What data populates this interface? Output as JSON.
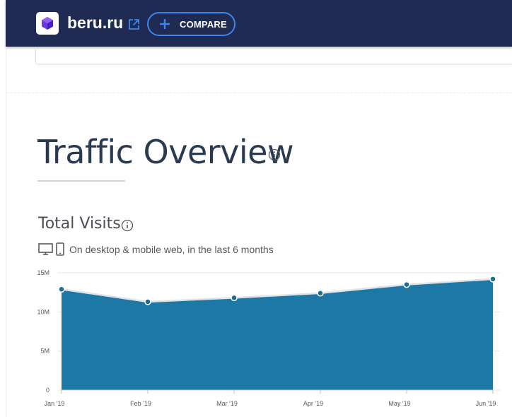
{
  "header": {
    "site_name": "beru.ru",
    "compare_label": "COMPARE"
  },
  "section": {
    "title": "Traffic Overview"
  },
  "total_visits": {
    "title": "Total Visits",
    "scope": "On desktop & mobile web, in the last 6 months"
  },
  "colors": {
    "topbar": "#202b54",
    "accent": "#3b86ee",
    "area_fill": "#1e78a6",
    "logo": "#6c39e0"
  },
  "chart_data": {
    "type": "area",
    "x": [
      "Jan '19",
      "Feb '19",
      "Mar '19",
      "Apr '19",
      "May '19",
      "Jun '19"
    ],
    "series": [
      {
        "values": [
          12.9,
          11.3,
          11.8,
          12.4,
          13.5,
          14.2
        ]
      }
    ],
    "y_ticks": [
      "15M",
      "10M",
      "5M",
      "0"
    ],
    "ylim": [
      0,
      15
    ],
    "units": "M",
    "grid": true
  }
}
